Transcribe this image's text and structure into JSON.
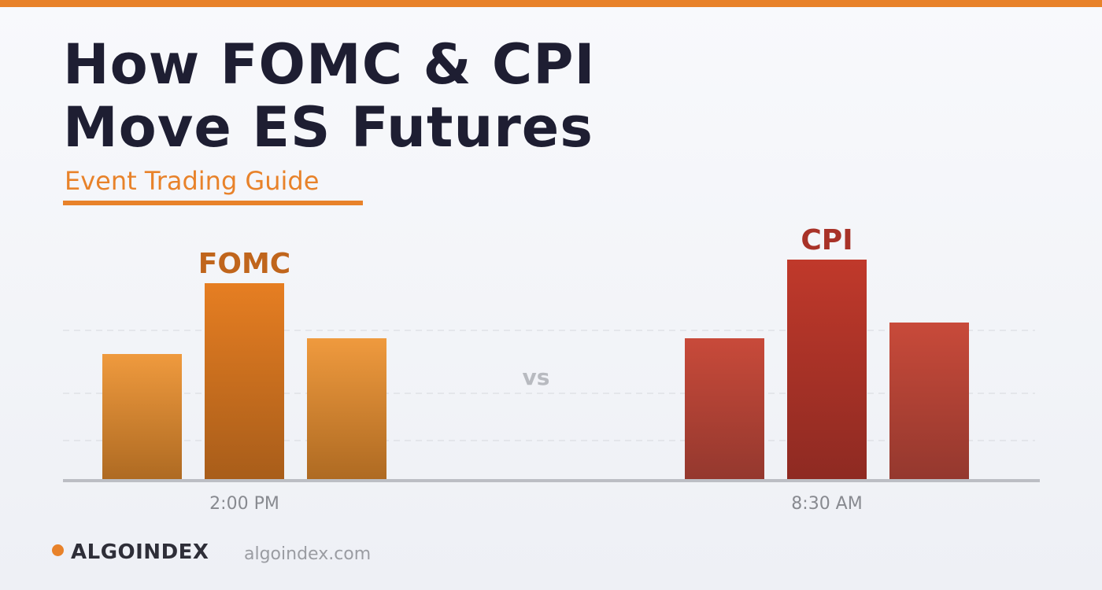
{
  "header": {
    "title_line1": "How FOMC & CPI",
    "title_line2": "Move ES Futures",
    "subtitle": "Event Trading Guide"
  },
  "colors": {
    "accent": "#e8822a",
    "fomc_label": "#c0651c",
    "cpi_label": "#a83228",
    "title": "#1e1e32"
  },
  "chart_data": {
    "type": "bar",
    "title": "",
    "xlabel": "",
    "ylabel": "",
    "ylim": [
      0,
      100
    ],
    "grid": true,
    "groups": [
      {
        "name": "FOMC",
        "tick_label": "2:00 PM",
        "values": [
          32,
          50,
          36
        ],
        "color_top": "#ef9a3e",
        "color_bottom": "#ae6a22",
        "color_top_peak": "#e67e22",
        "color_bottom_peak": "#a85d1a",
        "label_color": "#c0651c"
      },
      {
        "name": "CPI",
        "tick_label": "8:30 AM",
        "values": [
          36,
          56,
          40
        ],
        "color_top": "#c84a3a",
        "color_bottom": "#94382e",
        "color_top_peak": "#c0392b",
        "color_bottom_peak": "#8e2a22",
        "label_color": "#a83228"
      }
    ],
    "separator_label": "vs",
    "gridlines": [
      10,
      22,
      38
    ]
  },
  "footer": {
    "brand": "ALGOINDEX",
    "url": "algoindex.com"
  }
}
